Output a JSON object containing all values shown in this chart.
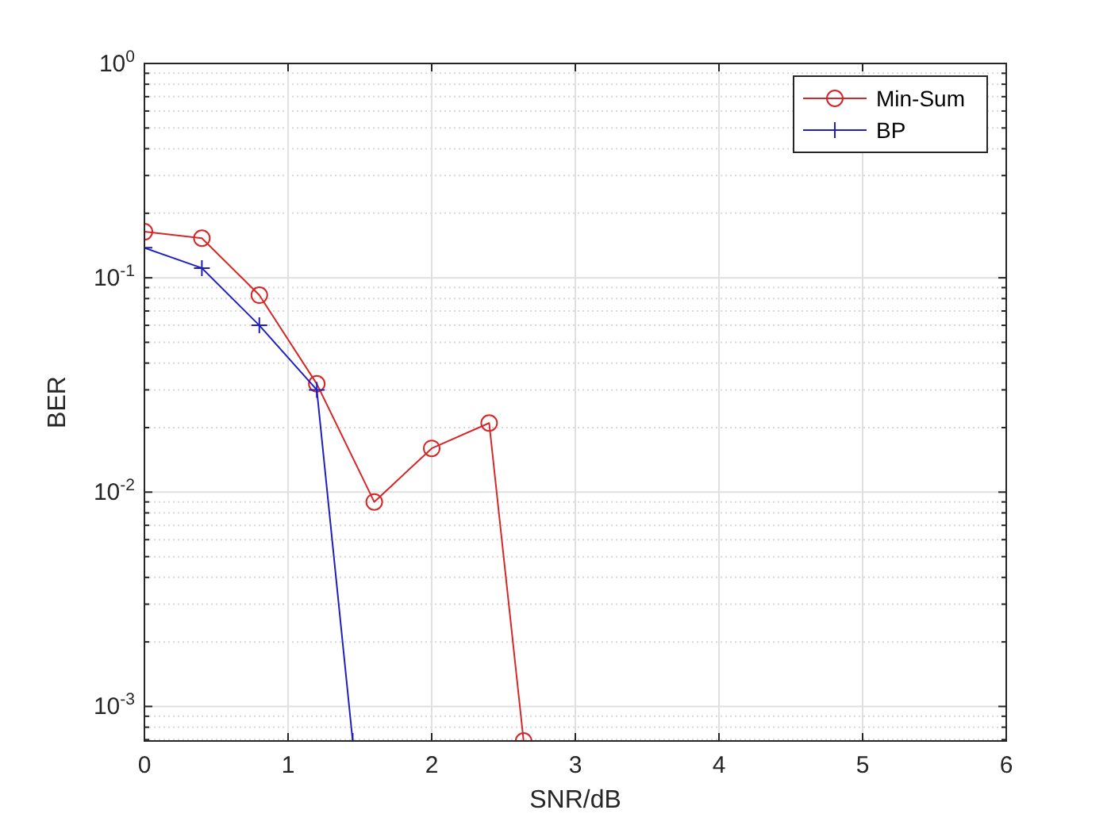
{
  "chart_data": {
    "type": "line",
    "xlabel": "SNR/dB",
    "ylabel": "BER",
    "log": true,
    "grid": true,
    "legend": "top right",
    "line_style": "solid",
    "xlim": [
      0,
      6
    ],
    "xticks": [
      0,
      1,
      2,
      3,
      4,
      5,
      6
    ],
    "ylim": [
      0.00069,
      1
    ],
    "yticks": [
      {
        "value": 0.001,
        "label": "10$^{-3}$"
      },
      {
        "value": 0.01,
        "label": "10$^{-2}$"
      },
      {
        "value": 0.1,
        "label": "10$^{-1}$"
      },
      {
        "value": 1,
        "label": "10$^{0}$"
      }
    ],
    "series": [
      {
        "name": "Min-Sum",
        "color": "#d62728",
        "marker": "circle",
        "x": [
          0,
          0.4,
          0.8,
          1.2,
          1.6,
          2.0,
          2.4,
          2.64
        ],
        "values": [
          0.164,
          0.153,
          0.083,
          0.032,
          0.009,
          0.016,
          0.021,
          0.00069
        ]
      },
      {
        "name": "BP",
        "color": "#1f1fbf",
        "marker": "cross",
        "x": [
          0,
          0.4,
          0.8,
          1.2,
          1.45
        ],
        "values": [
          0.138,
          0.111,
          0.06,
          0.03,
          0.00069
        ]
      }
    ]
  }
}
